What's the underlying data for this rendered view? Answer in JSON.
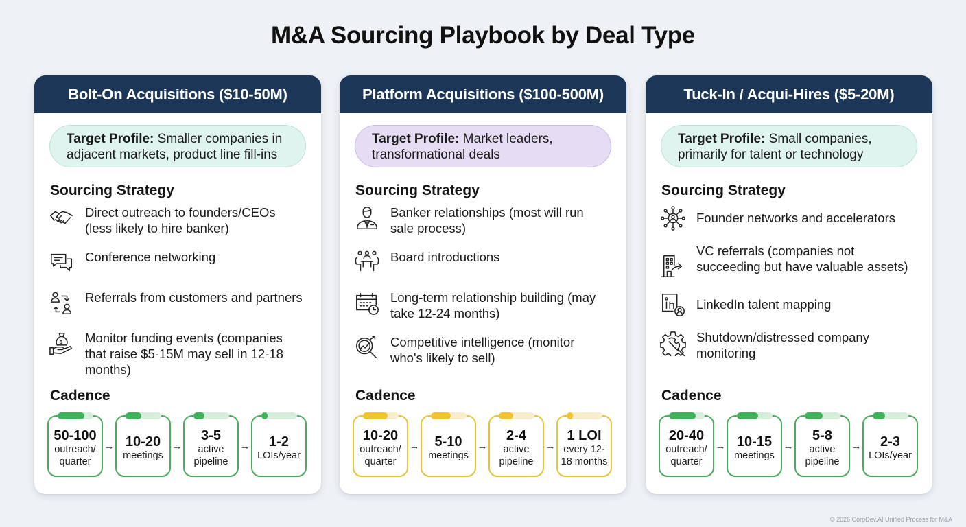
{
  "title": "M&A Sourcing Playbook by Deal Type",
  "footer": "© 2026 CorpDev.AI Unified Process for M&A",
  "colors": {
    "background": "#eef1f5",
    "header_bg": "#1c3658",
    "green_border": "#4cab5f",
    "green_fill": "#3fb35c",
    "green_track": "#d8eedd",
    "yellow_border": "#e6c43a",
    "yellow_fill": "#f0c531",
    "yellow_track": "#f8edcd",
    "teal_profile_bg": "#dff3ef",
    "teal_profile_border": "#b9e2da",
    "purple_profile_bg": "#e6dcf4",
    "purple_profile_border": "#cbb7e6"
  },
  "sections": {
    "sourcing_title": "Sourcing Strategy",
    "cadence_title": "Cadence",
    "profile_label": "Target Profile:"
  },
  "cards": [
    {
      "title": "Bolt-On Acquisitions ($10-50M)",
      "profile_text": "Smaller companies in adjacent markets, product line fill-ins",
      "strategies": [
        {
          "icon": "handshake-icon",
          "text": "Direct outreach to founders/CEOs (less likely to hire banker)"
        },
        {
          "icon": "chat-bubbles-icon",
          "text": "Conference networking"
        },
        {
          "icon": "referral-users-icon",
          "text": "Referrals from customers and partners"
        },
        {
          "icon": "money-bag-hand-icon",
          "text": "Monitor funding events (companies that raise $5-15M may sell in 12-18 months)"
        }
      ],
      "cadence": [
        {
          "num": "50-100",
          "label": "outreach/ quarter",
          "fill_pct": 75
        },
        {
          "num": "10-20",
          "label": "meetings",
          "fill_pct": 45
        },
        {
          "num": "3-5",
          "label": "active pipeline",
          "fill_pct": 30
        },
        {
          "num": "1-2",
          "label": "LOIs/year",
          "fill_pct": 15
        }
      ]
    },
    {
      "title": "Platform Acquisitions ($100-500M)",
      "profile_text": "Market leaders, transformational deals",
      "strategies": [
        {
          "icon": "banker-person-icon",
          "text": "Banker relationships (most will run sale process)"
        },
        {
          "icon": "board-meeting-icon",
          "text": "Board introductions"
        },
        {
          "icon": "calendar-clock-icon",
          "text": "Long-term relationship building (may take 12-24 months)"
        },
        {
          "icon": "magnifier-trend-icon",
          "text": "Competitive intelligence (monitor who's likely to sell)"
        }
      ],
      "cadence": [
        {
          "num": "10-20",
          "label": "outreach/ quarter",
          "fill_pct": 70
        },
        {
          "num": "5-10",
          "label": "meetings",
          "fill_pct": 55
        },
        {
          "num": "2-4",
          "label": "active pipeline",
          "fill_pct": 40
        },
        {
          "num": "1 LOI",
          "label": "every 12- 18 months",
          "fill_pct": 15
        }
      ]
    },
    {
      "title": "Tuck-In / Acqui-Hires ($5-20M)",
      "profile_text": "Small companies, primarily for talent or technology",
      "strategies": [
        {
          "icon": "founder-network-icon",
          "text": "Founder networks and accelerators"
        },
        {
          "icon": "building-arrow-icon",
          "text": "VC referrals (companies not succeeding but have valuable assets)"
        },
        {
          "icon": "linkedin-person-icon",
          "text": "LinkedIn talent mapping"
        },
        {
          "icon": "gear-wrench-icon",
          "text": "Shutdown/distressed company monitoring"
        }
      ],
      "cadence": [
        {
          "num": "20-40",
          "label": "outreach/ quarter",
          "fill_pct": 75
        },
        {
          "num": "10-15",
          "label": "meetings",
          "fill_pct": 60
        },
        {
          "num": "5-8",
          "label": "active pipeline",
          "fill_pct": 50
        },
        {
          "num": "2-3",
          "label": "LOIs/year",
          "fill_pct": 35
        }
      ]
    }
  ]
}
